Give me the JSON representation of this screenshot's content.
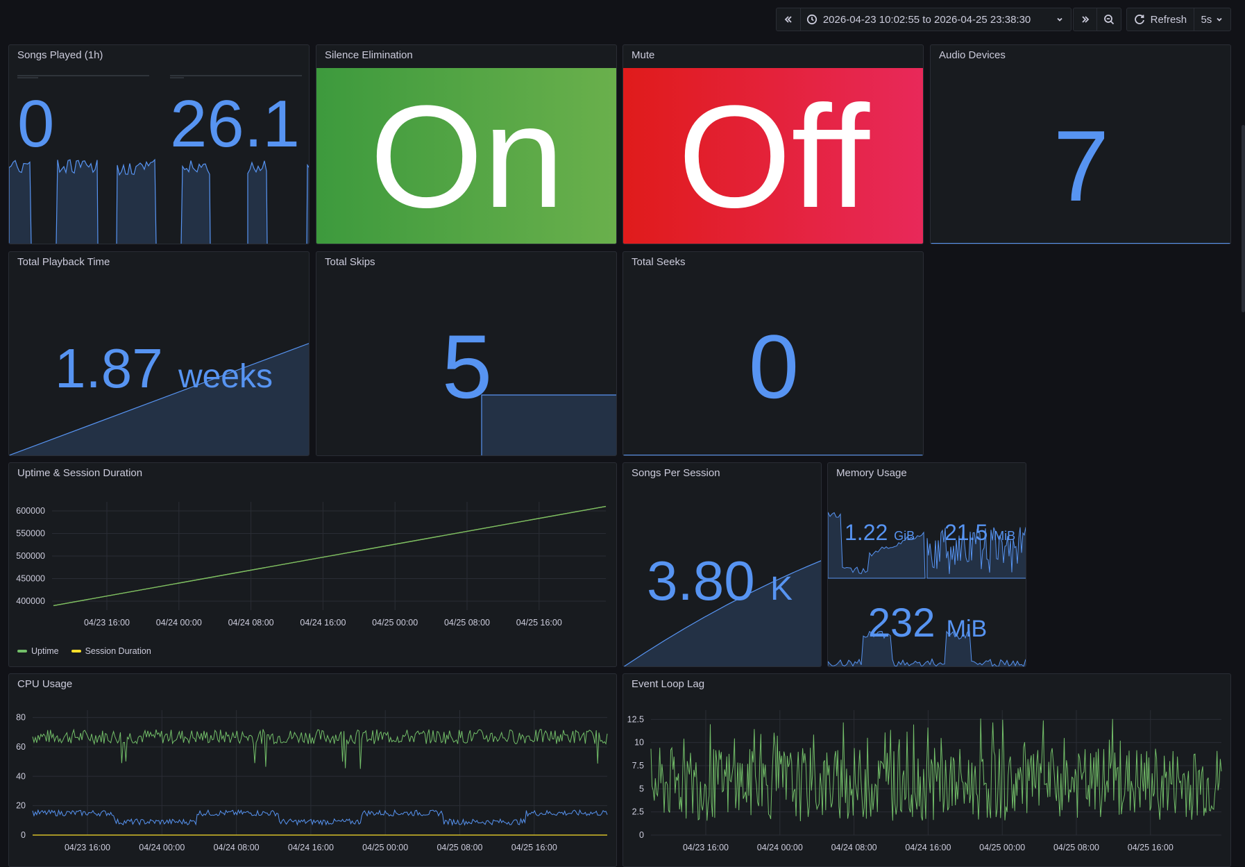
{
  "toolbar": {
    "time_range": "2026-04-23 10:02:55 to 2026-04-25 23:38:30",
    "refresh_label": "Refresh",
    "interval": "5s"
  },
  "panels": {
    "songs_played": {
      "title": "Songs Played (1h)",
      "value_a": "0",
      "value_b": "26.1"
    },
    "silence": {
      "title": "Silence Elimination",
      "value": "On",
      "color_from": "#3d9a3d",
      "color_to": "#6ab04c"
    },
    "mute": {
      "title": "Mute",
      "value": "Off",
      "color_from": "#e01b1b",
      "color_to": "#e8295a"
    },
    "audio_devices": {
      "title": "Audio Devices",
      "value": "7"
    },
    "playback_time": {
      "title": "Total Playback Time",
      "value": "1.87",
      "unit": "weeks"
    },
    "skips": {
      "title": "Total Skips",
      "value": "5"
    },
    "seeks": {
      "title": "Total Seeks",
      "value": "0"
    },
    "uptime": {
      "title": "Uptime & Session Duration"
    },
    "songs_per_session": {
      "title": "Songs Per Session",
      "value": "3.80",
      "unit": "K"
    },
    "memory": {
      "title": "Memory Usage",
      "value_a": "1.22",
      "unit_a": "GiB",
      "value_b": "21.5",
      "unit_b": "MiB",
      "value_c": "232",
      "unit_c": "MiB"
    },
    "cpu": {
      "title": "CPU Usage"
    },
    "event_loop": {
      "title": "Event Loop Lag"
    }
  },
  "chart_data": [
    {
      "id": "uptime",
      "type": "line",
      "title": "Uptime & Session Duration",
      "x_ticks": [
        "04/23 16:00",
        "04/24 00:00",
        "04/24 08:00",
        "04/24 16:00",
        "04/25 00:00",
        "04/25 08:00",
        "04/25 16:00"
      ],
      "y_ticks": [
        400000,
        450000,
        500000,
        550000,
        600000
      ],
      "ylim": [
        380000,
        620000
      ],
      "series": [
        {
          "name": "Uptime",
          "color": "#73bf69",
          "start": 390000,
          "end": 610000
        },
        {
          "name": "Session Duration",
          "color": "#fade2a",
          "start": 390000,
          "end": 610000
        }
      ],
      "legend": "bottom-left"
    },
    {
      "id": "cpu",
      "type": "line",
      "title": "CPU Usage",
      "x_ticks": [
        "04/23 16:00",
        "04/24 00:00",
        "04/24 08:00",
        "04/24 16:00",
        "04/25 00:00",
        "04/25 08:00",
        "04/25 16:00"
      ],
      "y_ticks": [
        0,
        20,
        40,
        60,
        80
      ],
      "ylim": [
        0,
        85
      ],
      "series": [
        {
          "color": "#73bf69",
          "approx_level": 67
        },
        {
          "color": "#5794f2",
          "approx_level": 12
        },
        {
          "color": "#fade2a",
          "approx_level": 0
        }
      ]
    },
    {
      "id": "event_loop",
      "type": "line",
      "title": "Event Loop Lag",
      "x_ticks": [
        "04/23 16:00",
        "04/24 00:00",
        "04/24 08:00",
        "04/24 16:00",
        "04/25 00:00",
        "04/25 08:00",
        "04/25 16:00"
      ],
      "y_ticks": [
        0,
        2.5,
        5,
        7.5,
        10,
        12.5
      ],
      "ylim": [
        0,
        13.5
      ],
      "series": [
        {
          "color": "#73bf69",
          "approx_level": 5.5
        }
      ]
    }
  ],
  "colors": {
    "accent_blue": "#5794f2",
    "green": "#73bf69",
    "yellow": "#fade2a",
    "panel_bg": "#181b1f",
    "page_bg": "#111217"
  }
}
